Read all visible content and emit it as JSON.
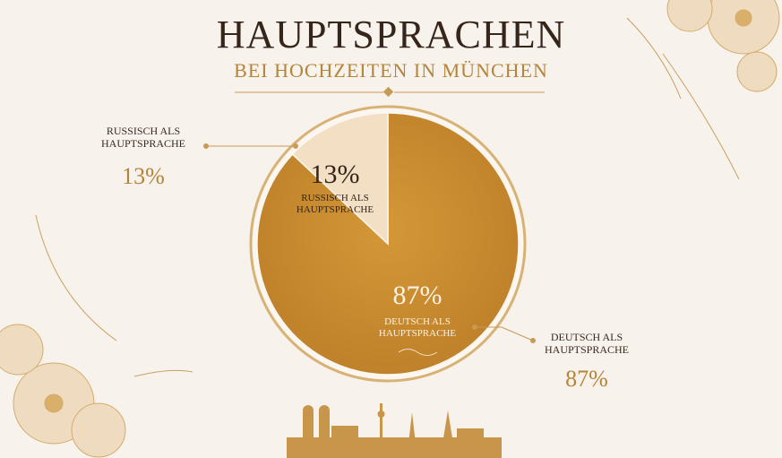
{
  "chart_data": {
    "type": "pie",
    "title": "HAUPTSPRACHEN",
    "subtitle": "BEI HOCHZEITEN IN MÜNCHEN",
    "categories": [
      "RUSSISCH ALS HAUPTSPRACHE",
      "DEUTSCH ALS HAUPTSPRACHE"
    ],
    "values": [
      13,
      87
    ],
    "value_labels": [
      "13%",
      "87%"
    ],
    "colors": [
      "#f3dfc4",
      "#c98a2e"
    ]
  }
}
